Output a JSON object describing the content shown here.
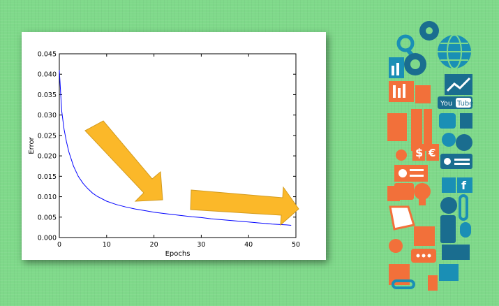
{
  "chart_data": {
    "type": "line",
    "xlabel": "Epochs",
    "ylabel": "Error",
    "xlim": [
      0,
      50
    ],
    "ylim": [
      0,
      0.045
    ],
    "x_ticks": [
      "0",
      "10",
      "20",
      "30",
      "40",
      "50"
    ],
    "y_ticks": [
      "0.000",
      "0.005",
      "0.010",
      "0.015",
      "0.020",
      "0.025",
      "0.030",
      "0.035",
      "0.040",
      "0.045"
    ],
    "grid": false,
    "series": [
      {
        "color": "#0000ff",
        "x": [
          0,
          0.5,
          1,
          1.5,
          2,
          3,
          4,
          5,
          6,
          7,
          8,
          10,
          12,
          14,
          16,
          18,
          20,
          22,
          25,
          28,
          30,
          32,
          35,
          38,
          40,
          42,
          45,
          48,
          49
        ],
        "y": [
          0.041,
          0.031,
          0.0265,
          0.0235,
          0.021,
          0.0175,
          0.015,
          0.0133,
          0.012,
          0.0109,
          0.0101,
          0.0089,
          0.0081,
          0.0075,
          0.007,
          0.0066,
          0.0062,
          0.0059,
          0.0055,
          0.0051,
          0.0049,
          0.0046,
          0.0043,
          0.004,
          0.0038,
          0.0036,
          0.0033,
          0.0031,
          0.003
        ]
      }
    ]
  },
  "colors": {
    "background": "#7fd98a",
    "arrow_fill": "#fbb829",
    "line": "#0000ff"
  },
  "decor": {
    "side_strip": "colorful-technology-icon-collage"
  }
}
